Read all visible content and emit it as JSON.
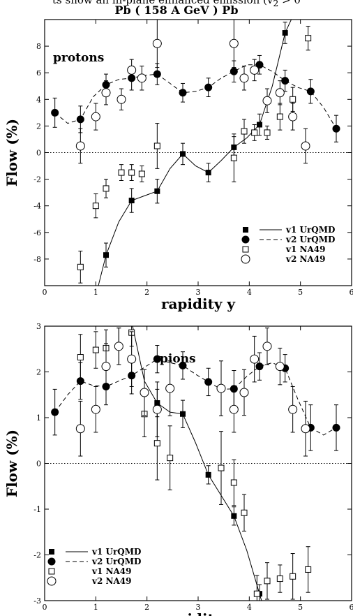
{
  "header_partial": "ts show an in-plane enhanced emission (v",
  "header_partial_sub": "2",
  "header_partial_end": " > 0",
  "figure_title": "Pb ( 158 A GeV ) Pb",
  "legend": {
    "v1_urqmd": "v1 UrQMD",
    "v2_urqmd": "v2 UrQMD",
    "v1_na49": "v1 NA49",
    "v2_na49": "v2 NA49"
  },
  "chart_data": [
    {
      "type": "scatter",
      "panel_label": "protons",
      "xlabel": "rapidity y",
      "ylabel": "Flow (%)",
      "xlim": [
        0,
        6
      ],
      "ylim": [
        -10,
        10
      ],
      "xticks": [
        0,
        1,
        2,
        3,
        4,
        5,
        6
      ],
      "yticks": [
        -8,
        -6,
        -4,
        -2,
        0,
        2,
        4,
        6,
        8
      ],
      "zero_line": "dotted",
      "legend_placement": "bottom-right",
      "series": [
        {
          "name": "v1 UrQMD",
          "marker": "filled-square",
          "line": "solid",
          "x": [
            1.2,
            1.7,
            2.2,
            2.7,
            3.2,
            3.7,
            4.2,
            4.7
          ],
          "y": [
            -7.7,
            -3.6,
            -2.9,
            -0.1,
            -1.5,
            0.4,
            2.1,
            9.0
          ],
          "err": [
            0.9,
            0.9,
            0.9,
            0.8,
            0.7,
            0.8,
            0.8,
            0.8
          ],
          "curve": [
            [
              1.05,
              -10.0
            ],
            [
              1.2,
              -7.7
            ],
            [
              1.45,
              -5.2
            ],
            [
              1.7,
              -3.6
            ],
            [
              1.95,
              -3.25
            ],
            [
              2.2,
              -2.9
            ],
            [
              2.45,
              -1.2
            ],
            [
              2.7,
              -0.1
            ],
            [
              2.95,
              -1.0
            ],
            [
              3.2,
              -1.5
            ],
            [
              3.45,
              -0.6
            ],
            [
              3.7,
              0.4
            ],
            [
              3.95,
              1.1
            ],
            [
              4.2,
              2.1
            ],
            [
              4.45,
              5.0
            ],
            [
              4.7,
              9.0
            ],
            [
              4.82,
              10.0
            ]
          ]
        },
        {
          "name": "v2 UrQMD",
          "marker": "filled-circle",
          "line": "dashed",
          "x": [
            0.2,
            0.7,
            1.2,
            1.7,
            2.2,
            2.7,
            3.2,
            3.7,
            4.2,
            4.7,
            5.2,
            5.7
          ],
          "y": [
            3.0,
            2.5,
            5.1,
            5.6,
            5.9,
            4.5,
            4.9,
            6.1,
            6.6,
            5.4,
            4.6,
            1.8
          ],
          "err": [
            1.1,
            1.0,
            0.8,
            0.9,
            0.8,
            0.7,
            0.7,
            0.8,
            0.7,
            0.8,
            0.9,
            1.0
          ],
          "curve": [
            [
              0.2,
              3.0
            ],
            [
              0.45,
              2.2
            ],
            [
              0.7,
              2.5
            ],
            [
              0.95,
              4.2
            ],
            [
              1.2,
              5.1
            ],
            [
              1.45,
              5.5
            ],
            [
              1.7,
              5.6
            ],
            [
              1.95,
              5.8
            ],
            [
              2.2,
              5.9
            ],
            [
              2.45,
              5.2
            ],
            [
              2.7,
              4.5
            ],
            [
              2.95,
              4.6
            ],
            [
              3.2,
              4.9
            ],
            [
              3.45,
              5.6
            ],
            [
              3.7,
              6.1
            ],
            [
              3.95,
              6.6
            ],
            [
              4.2,
              6.6
            ],
            [
              4.45,
              6.1
            ],
            [
              4.7,
              5.4
            ],
            [
              4.95,
              4.9
            ],
            [
              5.2,
              4.6
            ],
            [
              5.45,
              3.4
            ],
            [
              5.7,
              1.8
            ]
          ]
        },
        {
          "name": "v1 NA49",
          "marker": "open-square",
          "x": [
            0.7,
            1.0,
            1.2,
            1.5,
            1.7,
            1.9,
            2.2,
            3.7,
            3.9,
            4.1,
            4.35,
            4.6,
            4.85,
            5.15
          ],
          "y": [
            -8.6,
            -4.0,
            -2.7,
            -1.5,
            -1.5,
            -1.6,
            0.5,
            -0.4,
            1.6,
            1.5,
            1.5,
            2.7,
            4.0,
            8.6
          ],
          "err": [
            1.2,
            0.9,
            0.7,
            0.6,
            0.6,
            0.6,
            1.7,
            1.8,
            0.9,
            0.6,
            0.5,
            1.0,
            0.9,
            0.9
          ]
        },
        {
          "name": "v2 NA49",
          "marker": "open-circle",
          "x": [
            0.7,
            1.0,
            1.2,
            1.5,
            1.7,
            1.9,
            2.2,
            3.7,
            3.9,
            4.1,
            4.35,
            4.6,
            4.85,
            5.1
          ],
          "y": [
            0.5,
            2.7,
            4.5,
            4.0,
            6.2,
            5.6,
            8.2,
            8.2,
            5.6,
            6.2,
            3.9,
            4.5,
            2.7,
            0.5
          ],
          "err": [
            1.3,
            1.0,
            0.9,
            0.8,
            0.8,
            0.9,
            1.8,
            1.8,
            0.9,
            0.8,
            0.9,
            0.9,
            1.0,
            1.3
          ]
        }
      ]
    },
    {
      "type": "scatter",
      "panel_label": "pions",
      "xlabel": "rapidity y",
      "ylabel": "Flow (%)",
      "xlim": [
        0,
        6
      ],
      "ylim": [
        -3,
        3
      ],
      "xticks": [
        0,
        1,
        2,
        3,
        4,
        5,
        6
      ],
      "yticks": [
        -3,
        -2,
        -1,
        0,
        1,
        2,
        3
      ],
      "zero_line": "dotted",
      "legend_placement": "bottom-left",
      "series": [
        {
          "name": "v1 UrQMD",
          "marker": "filled-square",
          "line": "solid",
          "x": [
            2.2,
            2.7,
            3.2,
            3.7,
            4.2
          ],
          "y": [
            1.32,
            1.08,
            -0.25,
            -1.15,
            -2.85
          ],
          "err": [
            0.3,
            0.3,
            0.2,
            0.2,
            0.2
          ],
          "curve": [
            [
              1.72,
              3.0
            ],
            [
              1.95,
              1.8
            ],
            [
              2.2,
              1.32
            ],
            [
              2.45,
              1.12
            ],
            [
              2.7,
              1.08
            ],
            [
              2.95,
              0.45
            ],
            [
              3.2,
              -0.25
            ],
            [
              3.45,
              -0.7
            ],
            [
              3.7,
              -1.15
            ],
            [
              3.95,
              -1.9
            ],
            [
              4.2,
              -2.85
            ],
            [
              4.24,
              -3.0
            ]
          ]
        },
        {
          "name": "v2 UrQMD",
          "marker": "filled-circle",
          "line": "dashed",
          "x": [
            0.2,
            0.7,
            1.2,
            1.7,
            2.2,
            2.7,
            3.2,
            3.7,
            4.2,
            4.7,
            5.2,
            5.7
          ],
          "y": [
            1.12,
            1.8,
            1.68,
            1.92,
            2.28,
            2.14,
            1.78,
            1.63,
            2.12,
            2.08,
            0.78,
            0.78
          ],
          "err": [
            0.5,
            0.4,
            0.4,
            0.4,
            0.3,
            0.3,
            0.3,
            0.4,
            0.3,
            0.3,
            0.5,
            0.5
          ],
          "curve": [
            [
              0.2,
              1.12
            ],
            [
              0.45,
              1.5
            ],
            [
              0.7,
              1.8
            ],
            [
              0.95,
              1.7
            ],
            [
              1.2,
              1.68
            ],
            [
              1.45,
              1.8
            ],
            [
              1.7,
              1.92
            ],
            [
              1.95,
              2.1
            ],
            [
              2.2,
              2.28
            ],
            [
              2.45,
              2.2
            ],
            [
              2.7,
              2.14
            ],
            [
              2.95,
              1.95
            ],
            [
              3.2,
              1.78
            ],
            [
              3.45,
              1.62
            ],
            [
              3.7,
              1.63
            ],
            [
              3.95,
              1.9
            ],
            [
              4.2,
              2.12
            ],
            [
              4.45,
              2.2
            ],
            [
              4.7,
              2.08
            ],
            [
              4.95,
              1.4
            ],
            [
              5.2,
              0.78
            ],
            [
              5.45,
              0.62
            ],
            [
              5.7,
              0.78
            ]
          ]
        },
        {
          "name": "v1 NA49",
          "marker": "open-square",
          "x": [
            0.7,
            1.0,
            1.2,
            1.45,
            1.7,
            1.95,
            2.2,
            2.45,
            3.45,
            3.7,
            3.9,
            4.15,
            4.35,
            4.6,
            4.85,
            5.15
          ],
          "y": [
            2.32,
            2.48,
            2.52,
            2.56,
            2.86,
            1.08,
            0.44,
            0.12,
            -0.1,
            -0.42,
            -1.08,
            -2.85,
            -2.57,
            -2.52,
            -2.47,
            -2.32
          ],
          "err": [
            0.5,
            0.4,
            0.4,
            0.4,
            0.3,
            0.5,
            0.8,
            0.7,
            0.8,
            0.5,
            0.4,
            0.4,
            0.4,
            0.3,
            0.5,
            0.5
          ]
        },
        {
          "name": "v2 NA49",
          "marker": "open-circle",
          "x": [
            0.7,
            1.0,
            1.2,
            1.45,
            1.7,
            1.95,
            2.2,
            2.45,
            3.45,
            3.7,
            3.9,
            4.1,
            4.35,
            4.6,
            4.85,
            5.1
          ],
          "y": [
            0.76,
            1.18,
            2.12,
            2.56,
            2.28,
            1.55,
            1.18,
            1.64,
            1.64,
            1.18,
            1.55,
            2.28,
            2.56,
            2.12,
            1.18,
            0.76
          ],
          "err": [
            0.6,
            0.5,
            0.5,
            0.4,
            0.6,
            0.5,
            0.6,
            0.6,
            0.6,
            0.5,
            0.5,
            0.5,
            0.4,
            0.4,
            0.5,
            0.6
          ]
        }
      ]
    }
  ]
}
